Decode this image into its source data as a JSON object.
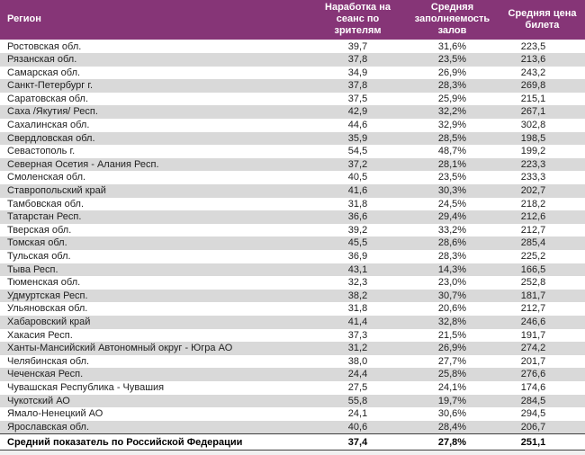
{
  "table": {
    "columns": {
      "region": "Регион",
      "sessions": "Наработка на сеанс по зрителям",
      "occupancy": "Средняя заполняемость залов",
      "price": "Средняя цена билета"
    },
    "rows": [
      {
        "region": "Ростовская обл.",
        "sessions": "39,7",
        "occupancy": "31,6%",
        "price": "223,5"
      },
      {
        "region": "Рязанская обл.",
        "sessions": "37,8",
        "occupancy": "23,5%",
        "price": "213,6"
      },
      {
        "region": "Самарская обл.",
        "sessions": "34,9",
        "occupancy": "26,9%",
        "price": "243,2"
      },
      {
        "region": "Санкт-Петербург г.",
        "sessions": "37,8",
        "occupancy": "28,3%",
        "price": "269,8"
      },
      {
        "region": "Саратовская обл.",
        "sessions": "37,5",
        "occupancy": "25,9%",
        "price": "215,1"
      },
      {
        "region": "Саха /Якутия/ Респ.",
        "sessions": "42,9",
        "occupancy": "32,2%",
        "price": "267,1"
      },
      {
        "region": "Сахалинская обл.",
        "sessions": "44,6",
        "occupancy": "32,9%",
        "price": "302,8"
      },
      {
        "region": "Свердловская обл.",
        "sessions": "35,9",
        "occupancy": "28,5%",
        "price": "198,5"
      },
      {
        "region": "Севастополь г.",
        "sessions": "54,5",
        "occupancy": "48,7%",
        "price": "199,2"
      },
      {
        "region": "Северная Осетия - Алания Респ.",
        "sessions": "37,2",
        "occupancy": "28,1%",
        "price": "223,3"
      },
      {
        "region": "Смоленская обл.",
        "sessions": "40,5",
        "occupancy": "23,5%",
        "price": "233,3"
      },
      {
        "region": "Ставропольский край",
        "sessions": "41,6",
        "occupancy": "30,3%",
        "price": "202,7"
      },
      {
        "region": "Тамбовская обл.",
        "sessions": "31,8",
        "occupancy": "24,5%",
        "price": "218,2"
      },
      {
        "region": "Татарстан Респ.",
        "sessions": "36,6",
        "occupancy": "29,4%",
        "price": "212,6"
      },
      {
        "region": "Тверская обл.",
        "sessions": "39,2",
        "occupancy": "33,2%",
        "price": "212,7"
      },
      {
        "region": "Томская обл.",
        "sessions": "45,5",
        "occupancy": "28,6%",
        "price": "285,4"
      },
      {
        "region": "Тульская обл.",
        "sessions": "36,9",
        "occupancy": "28,3%",
        "price": "225,2"
      },
      {
        "region": "Тыва Респ.",
        "sessions": "43,1",
        "occupancy": "14,3%",
        "price": "166,5"
      },
      {
        "region": "Тюменская обл.",
        "sessions": "32,3",
        "occupancy": "23,0%",
        "price": "252,8"
      },
      {
        "region": "Удмуртская Респ.",
        "sessions": "38,2",
        "occupancy": "30,7%",
        "price": "181,7"
      },
      {
        "region": "Ульяновская обл.",
        "sessions": "31,8",
        "occupancy": "20,6%",
        "price": "212,7"
      },
      {
        "region": "Хабаровский край",
        "sessions": "41,4",
        "occupancy": "32,8%",
        "price": "246,6"
      },
      {
        "region": "Хакасия Респ.",
        "sessions": "37,3",
        "occupancy": "21,5%",
        "price": "191,7"
      },
      {
        "region": "Ханты-Мансийский Автономный округ - Югра АО",
        "sessions": "31,2",
        "occupancy": "26,9%",
        "price": "274,2"
      },
      {
        "region": "Челябинская обл.",
        "sessions": "38,0",
        "occupancy": "27,7%",
        "price": "201,7"
      },
      {
        "region": "Чеченская Респ.",
        "sessions": "24,4",
        "occupancy": "25,8%",
        "price": "276,6"
      },
      {
        "region": "Чувашская Республика - Чувашия",
        "sessions": "27,5",
        "occupancy": "24,1%",
        "price": "174,6"
      },
      {
        "region": "Чукотский АО",
        "sessions": "55,8",
        "occupancy": "19,7%",
        "price": "284,5"
      },
      {
        "region": "Ямало-Ненецкий АО",
        "sessions": "24,1",
        "occupancy": "30,6%",
        "price": "294,5"
      },
      {
        "region": "Ярославская обл.",
        "sessions": "40,6",
        "occupancy": "28,4%",
        "price": "206,7"
      }
    ],
    "total": {
      "region": "Средний показатель по Российской Федерации",
      "sessions": "37,4",
      "occupancy": "27,8%",
      "price": "251,1"
    }
  },
  "colors": {
    "header_bg": "#863577",
    "header_text": "#ffffff",
    "stripe": "#d9d9d9",
    "body_text": "#1f1f1f",
    "total_border": "#404040",
    "page_bg": "#f0f0f0"
  },
  "chart_data": {
    "type": "table",
    "title": "",
    "columns": [
      "Регион",
      "Наработка на сеанс по зрителям",
      "Средняя заполняемость залов",
      "Средняя цена билета"
    ],
    "rows": [
      [
        "Ростовская обл.",
        39.7,
        31.6,
        223.5
      ],
      [
        "Рязанская обл.",
        37.8,
        23.5,
        213.6
      ],
      [
        "Самарская обл.",
        34.9,
        26.9,
        243.2
      ],
      [
        "Санкт-Петербург г.",
        37.8,
        28.3,
        269.8
      ],
      [
        "Саратовская обл.",
        37.5,
        25.9,
        215.1
      ],
      [
        "Саха /Якутия/ Респ.",
        42.9,
        32.2,
        267.1
      ],
      [
        "Сахалинская обл.",
        44.6,
        32.9,
        302.8
      ],
      [
        "Свердловская обл.",
        35.9,
        28.5,
        198.5
      ],
      [
        "Севастополь г.",
        54.5,
        48.7,
        199.2
      ],
      [
        "Северная Осетия - Алания Респ.",
        37.2,
        28.1,
        223.3
      ],
      [
        "Смоленская обл.",
        40.5,
        23.5,
        233.3
      ],
      [
        "Ставропольский край",
        41.6,
        30.3,
        202.7
      ],
      [
        "Тамбовская обл.",
        31.8,
        24.5,
        218.2
      ],
      [
        "Татарстан Респ.",
        36.6,
        29.4,
        212.6
      ],
      [
        "Тверская обл.",
        39.2,
        33.2,
        212.7
      ],
      [
        "Томская обл.",
        45.5,
        28.6,
        285.4
      ],
      [
        "Тульская обл.",
        36.9,
        28.3,
        225.2
      ],
      [
        "Тыва Респ.",
        43.1,
        14.3,
        166.5
      ],
      [
        "Тюменская обл.",
        32.3,
        23.0,
        252.8
      ],
      [
        "Удмуртская Респ.",
        38.2,
        30.7,
        181.7
      ],
      [
        "Ульяновская обл.",
        31.8,
        20.6,
        212.7
      ],
      [
        "Хабаровский край",
        41.4,
        32.8,
        246.6
      ],
      [
        "Хакасия Респ.",
        37.3,
        21.5,
        191.7
      ],
      [
        "Ханты-Мансийский Автономный округ - Югра АО",
        31.2,
        26.9,
        274.2
      ],
      [
        "Челябинская обл.",
        38.0,
        27.7,
        201.7
      ],
      [
        "Чеченская Респ.",
        24.4,
        25.8,
        276.6
      ],
      [
        "Чувашская Республика - Чувашия",
        27.5,
        24.1,
        174.6
      ],
      [
        "Чукотский АО",
        55.8,
        19.7,
        284.5
      ],
      [
        "Ямало-Ненецкий АО",
        24.1,
        30.6,
        294.5
      ],
      [
        "Ярославская обл.",
        40.6,
        28.4,
        206.7
      ]
    ],
    "total_row": [
      "Средний показатель по Российской Федерации",
      37.4,
      27.8,
      251.1
    ],
    "notes": "occupancy column shown as percent values"
  }
}
